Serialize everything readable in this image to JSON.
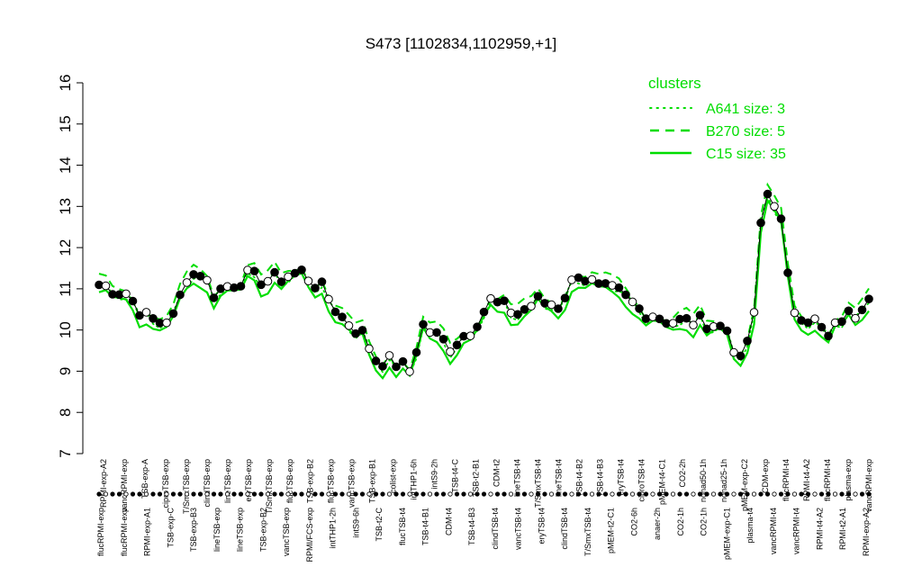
{
  "chart_data": {
    "type": "line",
    "title": "S473 [1102834,1102959,+1]",
    "xlabel": "",
    "ylabel": "",
    "ylim": [
      7,
      16
    ],
    "yticks": [
      7,
      8,
      9,
      10,
      11,
      12,
      13,
      14,
      15,
      16
    ],
    "grid": false,
    "legend_position": "top-right",
    "colors": {
      "points": "#000000",
      "cluster_line": "#00dd00",
      "hollow_fill": "#ffffff"
    },
    "tick_labels_upper": [
      "RPMI-exp-A2",
      "vancRPMI-exp",
      "TSB-exp-A",
      "ciproTSB-exp",
      "T/SmxTSB-exp",
      "clindTSB-exp",
      "lineTSB-exp",
      "eryTSB-exp",
      "T/SmxTSB-exp",
      "flucTSB-exp",
      "TSB-exp-B2",
      "flucTSB-exp",
      "vancTSB-exp",
      "TSB-exp-B1",
      "colist-exp",
      "intTHP1-6h",
      "intS9-2h",
      "TSB-t4-C",
      "TSB-t2-B1",
      "CDM-t2",
      "lineTSB-t4",
      "T/SmxTSB-t4",
      "lineTSB-t4",
      "TSB-t4-B2",
      "TSB-t4-B3",
      "eryTSB-t4",
      "ciproTSB-t4",
      "pMEM-t4-C1",
      "CO2-2h",
      "nonad50-1h",
      "nonad25-1h",
      "pMEM-exp-C2",
      "CDM-exp",
      "flucRPMI-t4",
      "RPMI-t4-A2",
      "flucRPMI-t4",
      "plasma-exp",
      "vancRPMI-exp"
    ],
    "tick_labels_lower": [
      "flucRPMI-exp",
      "flucRPMI-exp",
      "RPMI-exp-A1",
      "TSB-exp-C",
      "TSB-exp-B3",
      "lineTSB-exp",
      "lineTSB-exp",
      "TSB-exp-B2",
      "vancTSB-exp",
      "RPMI/FCS-exp",
      "intTHP1-2h",
      "intS9-6h",
      "TSB-t2-C",
      "flucTSB-t4",
      "TSB-t4-B1",
      "CDM-t4",
      "TSB-t4-B3",
      "clindTSB-t4",
      "vancTSB-t4",
      "eryTSB-t4",
      "clindTSB-t4",
      "T/SmxTSB-t4",
      "pMEM-t2-C1",
      "CO2-6h",
      "anaer-2h",
      "CO2-1h",
      "CO2-1h",
      "pMEM-exp-C1",
      "plasma-t4",
      "vancRPMI-t4",
      "vancRPMI-t4",
      "RPMI-t4-A2",
      "RPMI-t2-A1",
      "RPMI-exp-A2"
    ],
    "series": [
      {
        "name": "A641 size: 3",
        "style": "dotted"
      },
      {
        "name": "B270 size: 5",
        "style": "dashed"
      },
      {
        "name": "C15 size: 35",
        "style": "solid"
      }
    ],
    "legend": {
      "title": "clusters",
      "entries": [
        "A641 size: 3",
        "B270 size: 5",
        "C15 size: 35"
      ]
    }
  }
}
